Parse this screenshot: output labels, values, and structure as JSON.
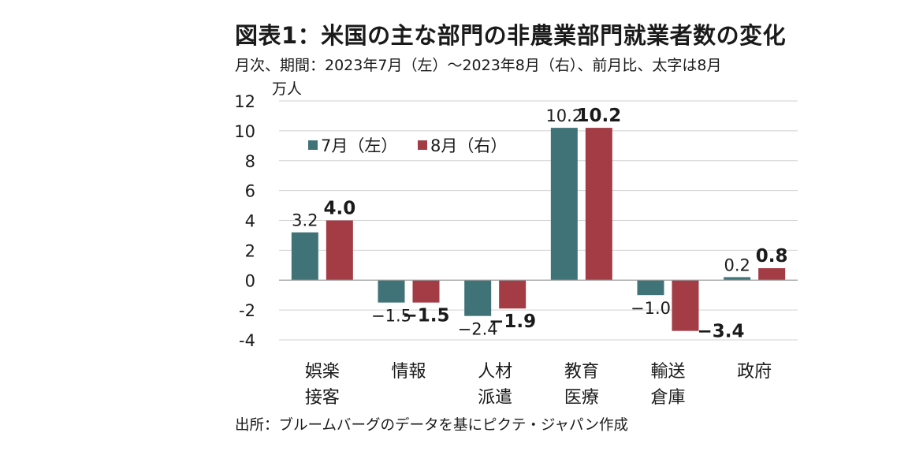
{
  "header": {
    "title": "図表1：米国の主な部門の非農業部門就業者数の変化",
    "subtitle": "月次、期間：2023年7月（左）～2023年8月（右）、前月比、太字は8月",
    "unit": "万人"
  },
  "footer": {
    "source": "出所：ブルームバーグのデータを基にピクテ・ジャパン作成"
  },
  "chart_data": {
    "type": "bar",
    "title": "図表1：米国の主な部門の非農業部門就業者数の変化",
    "ylabel": "万人",
    "ylim": [
      -4,
      12
    ],
    "yticks": [
      "12",
      "10",
      "8",
      "6",
      "4",
      "2",
      "0",
      "-2",
      "-4"
    ],
    "grid": true,
    "legend_position": "top-left",
    "categories": [
      [
        "娯楽",
        "接客"
      ],
      [
        "情報"
      ],
      [
        "人材",
        "派遣"
      ],
      [
        "教育",
        "医療"
      ],
      [
        "輸送",
        "倉庫"
      ],
      [
        "政府"
      ]
    ],
    "series": [
      {
        "name": "7月（左）",
        "color": "#3f7378",
        "values": [
          3.2,
          -1.5,
          -2.4,
          10.2,
          -1.0,
          0.2
        ],
        "labels": [
          "3.2",
          "−1.5",
          "−2.4",
          "10.2",
          "−1.0",
          "0.2"
        ]
      },
      {
        "name": "8月（右）",
        "color": "#a33c45",
        "values": [
          4.0,
          -1.5,
          -1.9,
          10.2,
          -3.4,
          0.8
        ],
        "labels": [
          "4.0",
          "−1.5",
          "−1.9",
          "10.2",
          "−3.4",
          "0.8"
        ]
      }
    ]
  }
}
